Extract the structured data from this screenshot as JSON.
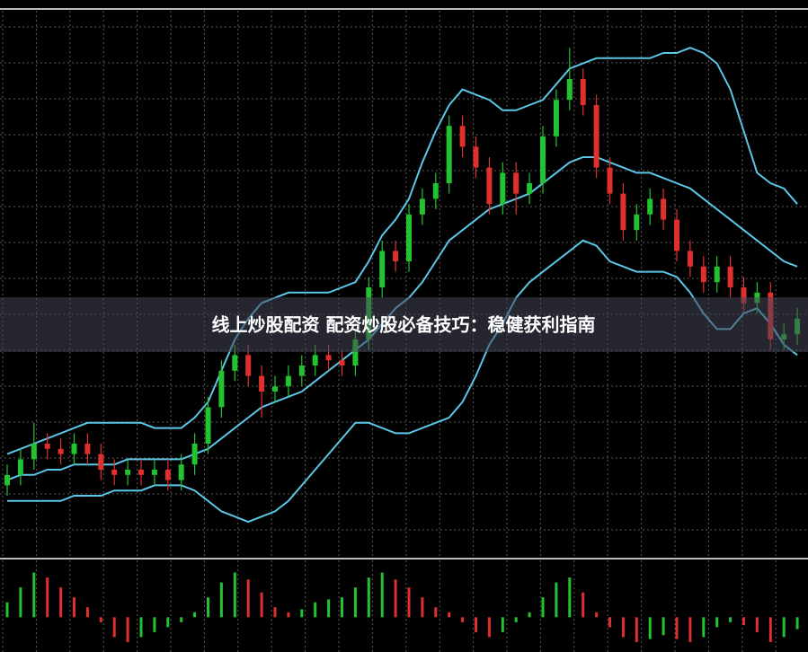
{
  "chart_data": {
    "type": "candlestick",
    "title": "线上炒股配资 配资炒股必备技巧：稳健获利指南",
    "open": [
      12,
      14,
      17,
      20,
      19,
      18,
      20,
      18,
      15,
      14,
      15,
      14,
      15,
      13,
      16,
      20,
      27,
      34,
      37,
      33,
      30,
      31,
      33,
      35,
      37,
      36,
      35,
      40,
      50,
      57,
      55,
      64,
      67,
      70,
      81,
      77,
      73,
      66,
      72,
      68,
      70,
      79,
      86,
      90,
      85,
      73,
      68,
      61,
      64,
      67,
      63,
      57,
      54,
      51,
      54,
      50,
      47,
      49,
      40,
      41
    ],
    "high": [
      16,
      19,
      24,
      22,
      21,
      22,
      22,
      20,
      17,
      17,
      17,
      17,
      17,
      18,
      22,
      29,
      36,
      39,
      39,
      35,
      33,
      35,
      37,
      39,
      39,
      38,
      42,
      52,
      59,
      59,
      66,
      69,
      72,
      83,
      83,
      79,
      75,
      74,
      74,
      72,
      81,
      88,
      96,
      92,
      87,
      75,
      70,
      66,
      69,
      69,
      65,
      59,
      56,
      56,
      56,
      52,
      51,
      51,
      43,
      46
    ],
    "low": [
      10,
      12,
      15,
      17,
      16,
      16,
      16,
      13,
      12,
      12,
      12,
      12,
      11,
      11,
      14,
      18,
      25,
      32,
      31,
      25,
      28,
      29,
      31,
      33,
      34,
      33,
      33,
      38,
      48,
      53,
      53,
      62,
      65,
      68,
      75,
      71,
      64,
      64,
      64,
      66,
      68,
      77,
      84,
      83,
      71,
      66,
      59,
      59,
      62,
      61,
      55,
      52,
      49,
      49,
      48,
      45,
      45,
      38,
      38,
      39
    ],
    "close": [
      14,
      17,
      20,
      19,
      18,
      20,
      18,
      15,
      14,
      15,
      14,
      15,
      13,
      16,
      20,
      27,
      34,
      37,
      33,
      30,
      31,
      33,
      35,
      37,
      36,
      35,
      40,
      50,
      57,
      55,
      64,
      67,
      70,
      81,
      77,
      73,
      66,
      72,
      68,
      70,
      79,
      86,
      90,
      85,
      73,
      68,
      61,
      64,
      67,
      63,
      57,
      54,
      51,
      54,
      50,
      47,
      49,
      40,
      41,
      44
    ],
    "up_color": "#22c32e",
    "down_color": "#e0302e",
    "ylim": [
      0,
      100
    ],
    "bands": [
      {
        "color": "#5cc6e6",
        "values": [
          18,
          19,
          20,
          21,
          22,
          23,
          24,
          24,
          24,
          24,
          24,
          23,
          23,
          23,
          25,
          28,
          34,
          40,
          44,
          47,
          48,
          49,
          49,
          49,
          49,
          50,
          51,
          55,
          60,
          63,
          67,
          74,
          80,
          85,
          88,
          87,
          86,
          84,
          84,
          85,
          86,
          89,
          92,
          93,
          94,
          94,
          94,
          94,
          94,
          95,
          95,
          96,
          95,
          93,
          88,
          80,
          72,
          70,
          69,
          66
        ]
      },
      {
        "color": "#5cc6e6",
        "values": [
          13,
          14,
          14,
          15,
          15,
          16,
          16,
          16,
          16,
          17,
          17,
          17,
          17,
          17,
          18,
          19,
          21,
          23,
          25,
          27,
          28,
          29,
          30,
          32,
          34,
          36,
          38,
          40,
          43,
          46,
          48,
          51,
          55,
          59,
          61,
          63,
          65,
          66,
          67,
          68,
          70,
          72,
          74,
          75,
          75,
          74,
          73,
          72,
          72,
          71,
          70,
          69,
          67,
          65,
          63,
          61,
          59,
          57,
          55,
          54
        ]
      },
      {
        "color": "#5cc6e6",
        "values": [
          9,
          9,
          9,
          9,
          9,
          10,
          10,
          10,
          11,
          11,
          11,
          12,
          12,
          12,
          11,
          9,
          7,
          6,
          5,
          6,
          7,
          9,
          12,
          15,
          18,
          21,
          24,
          24,
          23,
          22,
          22,
          23,
          24,
          25,
          28,
          33,
          39,
          43,
          48,
          51,
          53,
          55,
          57,
          59,
          58,
          55,
          54,
          53,
          53,
          53,
          52,
          49,
          45,
          42,
          42,
          45,
          46,
          43,
          39,
          37
        ]
      }
    ],
    "histogram": {
      "ylim": [
        -35,
        50
      ],
      "values": [
        15,
        30,
        45,
        40,
        30,
        20,
        10,
        -5,
        -20,
        -25,
        -20,
        -15,
        -10,
        -5,
        5,
        20,
        35,
        45,
        38,
        25,
        10,
        5,
        8,
        15,
        18,
        20,
        30,
        40,
        45,
        38,
        30,
        20,
        10,
        5,
        -5,
        -15,
        -20,
        -15,
        -5,
        5,
        20,
        35,
        40,
        25,
        5,
        -10,
        -20,
        -25,
        -22,
        -18,
        -22,
        -25,
        -20,
        -10,
        -5,
        -8,
        -15,
        -25,
        -20,
        -12
      ]
    }
  }
}
